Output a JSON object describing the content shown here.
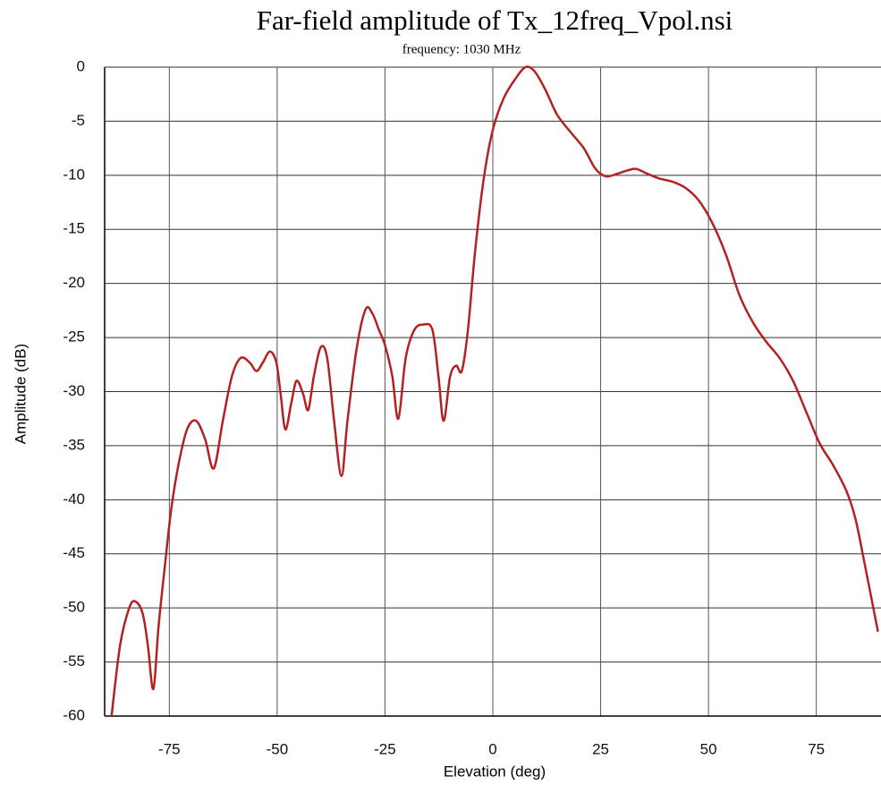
{
  "chart_data": {
    "type": "line",
    "title": "Far-field amplitude of Tx_12freq_Vpol.nsi",
    "subtitle": "frequency: 1030 MHz",
    "x_label": "Elevation (deg)",
    "y_label": "Amplitude (dB)",
    "xlim": [
      -90,
      90
    ],
    "ylim": [
      -60,
      0
    ],
    "xticks": [
      -75,
      -50,
      -25,
      0,
      25,
      50,
      75
    ],
    "yticks": [
      0,
      -5,
      -10,
      -15,
      -20,
      -25,
      -30,
      -35,
      -40,
      -45,
      -50,
      -55,
      -60
    ],
    "grid": true,
    "x": [
      -88.4,
      -86.4,
      -84.3,
      -82.9,
      -81.2,
      -80,
      -78.7,
      -77.5,
      -76,
      -74.6,
      -72.9,
      -70.9,
      -68.8,
      -66.7,
      -64.7,
      -62.6,
      -60.5,
      -58.5,
      -56.4,
      -54.8,
      -53.3,
      -51.7,
      -50.2,
      -49.2,
      -48.1,
      -46.7,
      -45.5,
      -44,
      -42.8,
      -41.5,
      -39.9,
      -38.4,
      -36.8,
      -35.1,
      -33.7,
      -31.6,
      -29.5,
      -27.9,
      -26.4,
      -25,
      -23.3,
      -21.9,
      -20.2,
      -18.2,
      -16.1,
      -14,
      -12.6,
      -11.4,
      -9.9,
      -8.5,
      -7.2,
      -5.8,
      -4.1,
      -2.1,
      0,
      2.5,
      5.2,
      7.6,
      9.7,
      12.2,
      14.9,
      18,
      21.1,
      23.8,
      26.3,
      29.3,
      32.9,
      35.5,
      38.6,
      41.7,
      44.8,
      47.9,
      51,
      54.1,
      57.2,
      60.3,
      63.4,
      66.5,
      69.6,
      72.7,
      75.8,
      78.9,
      82,
      84.1,
      86.2,
      89.3
    ],
    "series": [
      {
        "color": "#b22222",
        "values": [
          -60,
          -53.4,
          -50,
          -49.4,
          -50.5,
          -53.4,
          -57.5,
          -51.7,
          -46,
          -41,
          -36.8,
          -33.5,
          -32.7,
          -34.4,
          -37.1,
          -32.7,
          -28.6,
          -26.9,
          -27.3,
          -28.1,
          -27.3,
          -26.3,
          -27.3,
          -30.2,
          -33.5,
          -31,
          -29,
          -30.2,
          -31.7,
          -28.6,
          -25.9,
          -26.9,
          -32.7,
          -37.8,
          -32.7,
          -26.1,
          -22.4,
          -22.8,
          -24.3,
          -25.7,
          -28.6,
          -32.5,
          -26.9,
          -24.3,
          -23.8,
          -24.3,
          -28.6,
          -32.7,
          -28.6,
          -27.6,
          -28.1,
          -24.4,
          -17,
          -10.3,
          -5.8,
          -2.9,
          -1.1,
          0,
          -0.4,
          -2.1,
          -4.4,
          -6,
          -7.5,
          -9.4,
          -10.1,
          -9.8,
          -9.4,
          -9.8,
          -10.3,
          -10.6,
          -11.2,
          -12.4,
          -14.5,
          -17.4,
          -21.1,
          -23.6,
          -25.4,
          -26.9,
          -29,
          -31.9,
          -34.8,
          -36.8,
          -39.2,
          -41.8,
          -45.9,
          -52.2
        ]
      }
    ]
  }
}
